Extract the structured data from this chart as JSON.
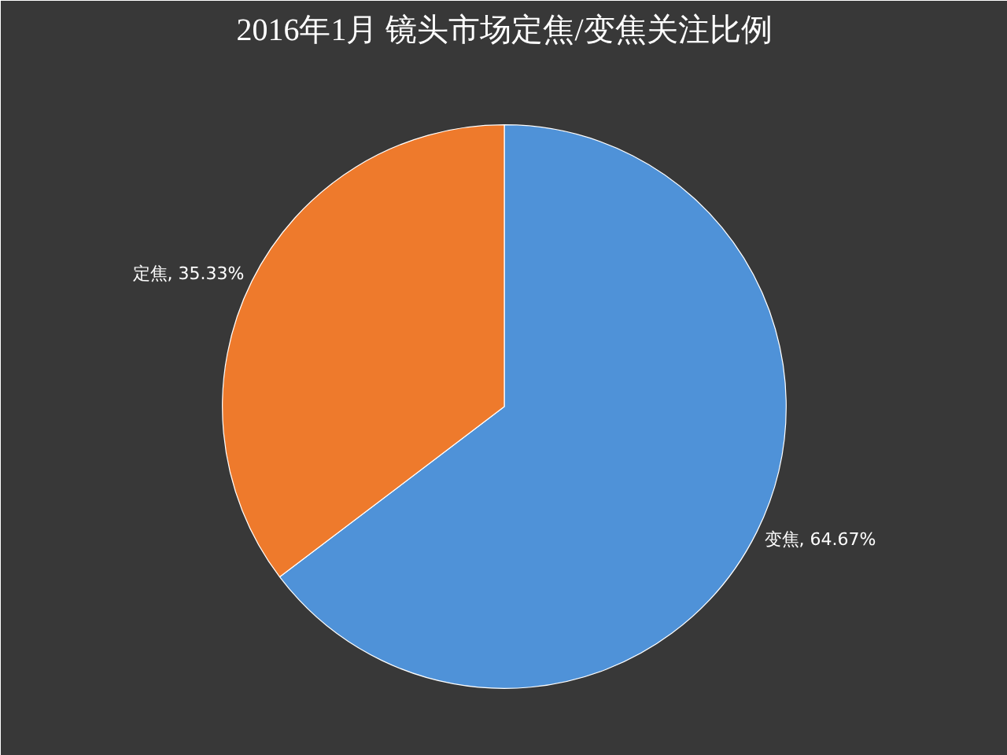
{
  "chart_data": {
    "type": "pie",
    "title": "2016年1月 镜头市场定焦/变焦关注比例",
    "categories": [
      "变焦",
      "定焦"
    ],
    "values": [
      64.67,
      35.33
    ],
    "value_labels": [
      "64.67%",
      "35.33%"
    ],
    "colors": [
      "#4f92d8",
      "#ee7a2c"
    ],
    "legend": false
  }
}
